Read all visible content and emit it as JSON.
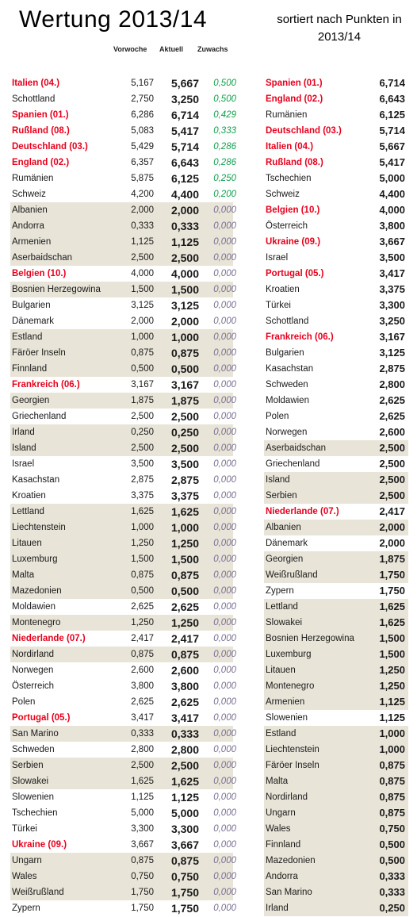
{
  "title": "Wertung 2013/14",
  "subtitle": "sortiert nach Punkten in 2013/14",
  "columns": {
    "vorwoche": "Vorwoche",
    "aktuell": "Aktuell",
    "zuwachs": "Zuwachs"
  },
  "left_rows": [
    {
      "name": "Italien (04.)",
      "vorwoche": "5,167",
      "aktuell": "5,667",
      "zuwachs": "0,500",
      "highlight": true,
      "shade": false
    },
    {
      "name": "Schottland",
      "vorwoche": "2,750",
      "aktuell": "3,250",
      "zuwachs": "0,500",
      "highlight": false,
      "shade": false
    },
    {
      "name": "Spanien (01.)",
      "vorwoche": "6,286",
      "aktuell": "6,714",
      "zuwachs": "0,429",
      "highlight": true,
      "shade": false
    },
    {
      "name": "Rußland (08.)",
      "vorwoche": "5,083",
      "aktuell": "5,417",
      "zuwachs": "0,333",
      "highlight": true,
      "shade": false
    },
    {
      "name": "Deutschland (03.)",
      "vorwoche": "5,429",
      "aktuell": "5,714",
      "zuwachs": "0,286",
      "highlight": true,
      "shade": false
    },
    {
      "name": "England (02.)",
      "vorwoche": "6,357",
      "aktuell": "6,643",
      "zuwachs": "0,286",
      "highlight": true,
      "shade": false
    },
    {
      "name": "Rumänien",
      "vorwoche": "5,875",
      "aktuell": "6,125",
      "zuwachs": "0,250",
      "highlight": false,
      "shade": false
    },
    {
      "name": "Schweiz",
      "vorwoche": "4,200",
      "aktuell": "4,400",
      "zuwachs": "0,200",
      "highlight": false,
      "shade": false
    },
    {
      "name": "Albanien",
      "vorwoche": "2,000",
      "aktuell": "2,000",
      "zuwachs": "0,000",
      "highlight": false,
      "shade": true
    },
    {
      "name": "Andorra",
      "vorwoche": "0,333",
      "aktuell": "0,333",
      "zuwachs": "0,000",
      "highlight": false,
      "shade": true
    },
    {
      "name": "Armenien",
      "vorwoche": "1,125",
      "aktuell": "1,125",
      "zuwachs": "0,000",
      "highlight": false,
      "shade": true
    },
    {
      "name": "Aserbaidschan",
      "vorwoche": "2,500",
      "aktuell": "2,500",
      "zuwachs": "0,000",
      "highlight": false,
      "shade": true
    },
    {
      "name": "Belgien (10.)",
      "vorwoche": "4,000",
      "aktuell": "4,000",
      "zuwachs": "0,000",
      "highlight": true,
      "shade": false
    },
    {
      "name": "Bosnien Herzegowina",
      "vorwoche": "1,500",
      "aktuell": "1,500",
      "zuwachs": "0,000",
      "highlight": false,
      "shade": true
    },
    {
      "name": "Bulgarien",
      "vorwoche": "3,125",
      "aktuell": "3,125",
      "zuwachs": "0,000",
      "highlight": false,
      "shade": false
    },
    {
      "name": "Dänemark",
      "vorwoche": "2,000",
      "aktuell": "2,000",
      "zuwachs": "0,000",
      "highlight": false,
      "shade": false
    },
    {
      "name": "Estland",
      "vorwoche": "1,000",
      "aktuell": "1,000",
      "zuwachs": "0,000",
      "highlight": false,
      "shade": true
    },
    {
      "name": "Färöer Inseln",
      "vorwoche": "0,875",
      "aktuell": "0,875",
      "zuwachs": "0,000",
      "highlight": false,
      "shade": true
    },
    {
      "name": "Finnland",
      "vorwoche": "0,500",
      "aktuell": "0,500",
      "zuwachs": "0,000",
      "highlight": false,
      "shade": true
    },
    {
      "name": "Frankreich (06.)",
      "vorwoche": "3,167",
      "aktuell": "3,167",
      "zuwachs": "0,000",
      "highlight": true,
      "shade": false
    },
    {
      "name": "Georgien",
      "vorwoche": "1,875",
      "aktuell": "1,875",
      "zuwachs": "0,000",
      "highlight": false,
      "shade": true
    },
    {
      "name": "Griechenland",
      "vorwoche": "2,500",
      "aktuell": "2,500",
      "zuwachs": "0,000",
      "highlight": false,
      "shade": false
    },
    {
      "name": "Irland",
      "vorwoche": "0,250",
      "aktuell": "0,250",
      "zuwachs": "0,000",
      "highlight": false,
      "shade": true
    },
    {
      "name": "Island",
      "vorwoche": "2,500",
      "aktuell": "2,500",
      "zuwachs": "0,000",
      "highlight": false,
      "shade": true
    },
    {
      "name": "Israel",
      "vorwoche": "3,500",
      "aktuell": "3,500",
      "zuwachs": "0,000",
      "highlight": false,
      "shade": false
    },
    {
      "name": "Kasachstan",
      "vorwoche": "2,875",
      "aktuell": "2,875",
      "zuwachs": "0,000",
      "highlight": false,
      "shade": false
    },
    {
      "name": "Kroatien",
      "vorwoche": "3,375",
      "aktuell": "3,375",
      "zuwachs": "0,000",
      "highlight": false,
      "shade": false
    },
    {
      "name": "Lettland",
      "vorwoche": "1,625",
      "aktuell": "1,625",
      "zuwachs": "0,000",
      "highlight": false,
      "shade": true
    },
    {
      "name": "Liechtenstein",
      "vorwoche": "1,000",
      "aktuell": "1,000",
      "zuwachs": "0,000",
      "highlight": false,
      "shade": true
    },
    {
      "name": "Litauen",
      "vorwoche": "1,250",
      "aktuell": "1,250",
      "zuwachs": "0,000",
      "highlight": false,
      "shade": true
    },
    {
      "name": "Luxemburg",
      "vorwoche": "1,500",
      "aktuell": "1,500",
      "zuwachs": "0,000",
      "highlight": false,
      "shade": true
    },
    {
      "name": "Malta",
      "vorwoche": "0,875",
      "aktuell": "0,875",
      "zuwachs": "0,000",
      "highlight": false,
      "shade": true
    },
    {
      "name": "Mazedonien",
      "vorwoche": "0,500",
      "aktuell": "0,500",
      "zuwachs": "0,000",
      "highlight": false,
      "shade": true
    },
    {
      "name": "Moldawien",
      "vorwoche": "2,625",
      "aktuell": "2,625",
      "zuwachs": "0,000",
      "highlight": false,
      "shade": false
    },
    {
      "name": "Montenegro",
      "vorwoche": "1,250",
      "aktuell": "1,250",
      "zuwachs": "0,000",
      "highlight": false,
      "shade": true
    },
    {
      "name": "Niederlande (07.)",
      "vorwoche": "2,417",
      "aktuell": "2,417",
      "zuwachs": "0,000",
      "highlight": true,
      "shade": false
    },
    {
      "name": "Nordirland",
      "vorwoche": "0,875",
      "aktuell": "0,875",
      "zuwachs": "0,000",
      "highlight": false,
      "shade": true
    },
    {
      "name": "Norwegen",
      "vorwoche": "2,600",
      "aktuell": "2,600",
      "zuwachs": "0,000",
      "highlight": false,
      "shade": false
    },
    {
      "name": "Österreich",
      "vorwoche": "3,800",
      "aktuell": "3,800",
      "zuwachs": "0,000",
      "highlight": false,
      "shade": false
    },
    {
      "name": "Polen",
      "vorwoche": "2,625",
      "aktuell": "2,625",
      "zuwachs": "0,000",
      "highlight": false,
      "shade": false
    },
    {
      "name": "Portugal (05.)",
      "vorwoche": "3,417",
      "aktuell": "3,417",
      "zuwachs": "0,000",
      "highlight": true,
      "shade": false
    },
    {
      "name": "San Marino",
      "vorwoche": "0,333",
      "aktuell": "0,333",
      "zuwachs": "0,000",
      "highlight": false,
      "shade": true
    },
    {
      "name": "Schweden",
      "vorwoche": "2,800",
      "aktuell": "2,800",
      "zuwachs": "0,000",
      "highlight": false,
      "shade": false
    },
    {
      "name": "Serbien",
      "vorwoche": "2,500",
      "aktuell": "2,500",
      "zuwachs": "0,000",
      "highlight": false,
      "shade": true
    },
    {
      "name": "Slowakei",
      "vorwoche": "1,625",
      "aktuell": "1,625",
      "zuwachs": "0,000",
      "highlight": false,
      "shade": true
    },
    {
      "name": "Slowenien",
      "vorwoche": "1,125",
      "aktuell": "1,125",
      "zuwachs": "0,000",
      "highlight": false,
      "shade": false
    },
    {
      "name": "Tschechien",
      "vorwoche": "5,000",
      "aktuell": "5,000",
      "zuwachs": "0,000",
      "highlight": false,
      "shade": false
    },
    {
      "name": "Türkei",
      "vorwoche": "3,300",
      "aktuell": "3,300",
      "zuwachs": "0,000",
      "highlight": false,
      "shade": false
    },
    {
      "name": "Ukraine (09.)",
      "vorwoche": "3,667",
      "aktuell": "3,667",
      "zuwachs": "0,000",
      "highlight": true,
      "shade": false
    },
    {
      "name": "Ungarn",
      "vorwoche": "0,875",
      "aktuell": "0,875",
      "zuwachs": "0,000",
      "highlight": false,
      "shade": true
    },
    {
      "name": "Wales",
      "vorwoche": "0,750",
      "aktuell": "0,750",
      "zuwachs": "0,000",
      "highlight": false,
      "shade": true
    },
    {
      "name": "Weißrußland",
      "vorwoche": "1,750",
      "aktuell": "1,750",
      "zuwachs": "0,000",
      "highlight": false,
      "shade": true
    },
    {
      "name": "Zypern",
      "vorwoche": "1,750",
      "aktuell": "1,750",
      "zuwachs": "0,000",
      "highlight": false,
      "shade": false
    }
  ],
  "right_rows": [
    {
      "name": "Spanien (01.)",
      "punkte": "6,714",
      "highlight": true,
      "shade": false
    },
    {
      "name": "England (02.)",
      "punkte": "6,643",
      "highlight": true,
      "shade": false
    },
    {
      "name": "Rumänien",
      "punkte": "6,125",
      "highlight": false,
      "shade": false
    },
    {
      "name": "Deutschland (03.)",
      "punkte": "5,714",
      "highlight": true,
      "shade": false
    },
    {
      "name": "Italien (04.)",
      "punkte": "5,667",
      "highlight": true,
      "shade": false
    },
    {
      "name": "Rußland (08.)",
      "punkte": "5,417",
      "highlight": true,
      "shade": false
    },
    {
      "name": "Tschechien",
      "punkte": "5,000",
      "highlight": false,
      "shade": false
    },
    {
      "name": "Schweiz",
      "punkte": "4,400",
      "highlight": false,
      "shade": false
    },
    {
      "name": "Belgien (10.)",
      "punkte": "4,000",
      "highlight": true,
      "shade": false
    },
    {
      "name": "Österreich",
      "punkte": "3,800",
      "highlight": false,
      "shade": false
    },
    {
      "name": "Ukraine (09.)",
      "punkte": "3,667",
      "highlight": true,
      "shade": false
    },
    {
      "name": "Israel",
      "punkte": "3,500",
      "highlight": false,
      "shade": false
    },
    {
      "name": "Portugal (05.)",
      "punkte": "3,417",
      "highlight": true,
      "shade": false
    },
    {
      "name": "Kroatien",
      "punkte": "3,375",
      "highlight": false,
      "shade": false
    },
    {
      "name": "Türkei",
      "punkte": "3,300",
      "highlight": false,
      "shade": false
    },
    {
      "name": "Schottland",
      "punkte": "3,250",
      "highlight": false,
      "shade": false
    },
    {
      "name": "Frankreich (06.)",
      "punkte": "3,167",
      "highlight": true,
      "shade": false
    },
    {
      "name": "Bulgarien",
      "punkte": "3,125",
      "highlight": false,
      "shade": false
    },
    {
      "name": "Kasachstan",
      "punkte": "2,875",
      "highlight": false,
      "shade": false
    },
    {
      "name": "Schweden",
      "punkte": "2,800",
      "highlight": false,
      "shade": false
    },
    {
      "name": "Moldawien",
      "punkte": "2,625",
      "highlight": false,
      "shade": false
    },
    {
      "name": "Polen",
      "punkte": "2,625",
      "highlight": false,
      "shade": false
    },
    {
      "name": "Norwegen",
      "punkte": "2,600",
      "highlight": false,
      "shade": false
    },
    {
      "name": "Aserbaidschan",
      "punkte": "2,500",
      "highlight": false,
      "shade": true
    },
    {
      "name": "Griechenland",
      "punkte": "2,500",
      "highlight": false,
      "shade": false
    },
    {
      "name": "Island",
      "punkte": "2,500",
      "highlight": false,
      "shade": true
    },
    {
      "name": "Serbien",
      "punkte": "2,500",
      "highlight": false,
      "shade": true
    },
    {
      "name": "Niederlande (07.)",
      "punkte": "2,417",
      "highlight": true,
      "shade": false
    },
    {
      "name": "Albanien",
      "punkte": "2,000",
      "highlight": false,
      "shade": true
    },
    {
      "name": "Dänemark",
      "punkte": "2,000",
      "highlight": false,
      "shade": false
    },
    {
      "name": "Georgien",
      "punkte": "1,875",
      "highlight": false,
      "shade": true
    },
    {
      "name": "Weißrußland",
      "punkte": "1,750",
      "highlight": false,
      "shade": true
    },
    {
      "name": "Zypern",
      "punkte": "1,750",
      "highlight": false,
      "shade": false
    },
    {
      "name": "Lettland",
      "punkte": "1,625",
      "highlight": false,
      "shade": true
    },
    {
      "name": "Slowakei",
      "punkte": "1,625",
      "highlight": false,
      "shade": true
    },
    {
      "name": "Bosnien Herzegowina",
      "punkte": "1,500",
      "highlight": false,
      "shade": true
    },
    {
      "name": "Luxemburg",
      "punkte": "1,500",
      "highlight": false,
      "shade": true
    },
    {
      "name": "Litauen",
      "punkte": "1,250",
      "highlight": false,
      "shade": true
    },
    {
      "name": "Montenegro",
      "punkte": "1,250",
      "highlight": false,
      "shade": true
    },
    {
      "name": "Armenien",
      "punkte": "1,125",
      "highlight": false,
      "shade": true
    },
    {
      "name": "Slowenien",
      "punkte": "1,125",
      "highlight": false,
      "shade": false
    },
    {
      "name": "Estland",
      "punkte": "1,000",
      "highlight": false,
      "shade": true
    },
    {
      "name": "Liechtenstein",
      "punkte": "1,000",
      "highlight": false,
      "shade": true
    },
    {
      "name": "Färöer Inseln",
      "punkte": "0,875",
      "highlight": false,
      "shade": true
    },
    {
      "name": "Malta",
      "punkte": "0,875",
      "highlight": false,
      "shade": true
    },
    {
      "name": "Nordirland",
      "punkte": "0,875",
      "highlight": false,
      "shade": true
    },
    {
      "name": "Ungarn",
      "punkte": "0,875",
      "highlight": false,
      "shade": true
    },
    {
      "name": "Wales",
      "punkte": "0,750",
      "highlight": false,
      "shade": true
    },
    {
      "name": "Finnland",
      "punkte": "0,500",
      "highlight": false,
      "shade": true
    },
    {
      "name": "Mazedonien",
      "punkte": "0,500",
      "highlight": false,
      "shade": true
    },
    {
      "name": "Andorra",
      "punkte": "0,333",
      "highlight": false,
      "shade": true
    },
    {
      "name": "San Marino",
      "punkte": "0,333",
      "highlight": false,
      "shade": true
    },
    {
      "name": "Irland",
      "punkte": "0,250",
      "highlight": false,
      "shade": true
    }
  ],
  "colors": {
    "highlight": "#e8001c",
    "positive": "#10a050",
    "zero": "#7a6f92",
    "shade": "#e8e4d8"
  }
}
